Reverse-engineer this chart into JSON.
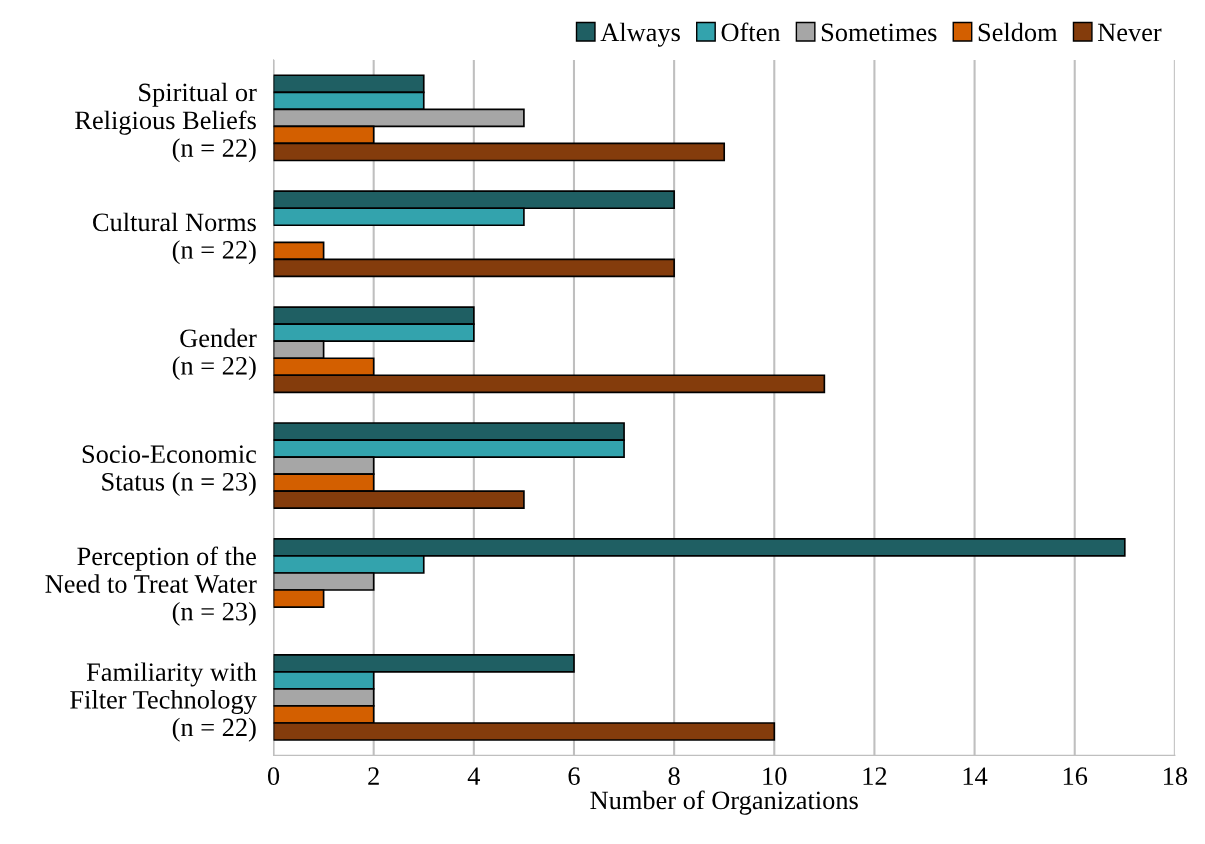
{
  "chart_data": {
    "type": "bar",
    "orientation": "horizontal",
    "xlabel": "Number of Organizations",
    "categories": [
      "Spiritual or\nReligious Beliefs\n(n = 22)",
      "Cultural Norms\n(n = 22)",
      "Gender\n(n = 22)",
      "Socio-Economic\nStatus (n = 23)",
      "Perception of the\nNeed to Treat Water\n(n = 23)",
      "Familiarity with\nFilter Technology\n(n = 22)"
    ],
    "series": [
      {
        "name": "Always",
        "color": "#1f5f63",
        "values": [
          3,
          8,
          4,
          7,
          17,
          6
        ]
      },
      {
        "name": "Often",
        "color": "#33a3ad",
        "values": [
          3,
          5,
          4,
          7,
          3,
          2
        ]
      },
      {
        "name": "Sometimes",
        "color": "#a6a6a6",
        "values": [
          5,
          null,
          1,
          2,
          2,
          2
        ]
      },
      {
        "name": "Seldom",
        "color": "#d35f00",
        "values": [
          2,
          1,
          2,
          2,
          1,
          2
        ]
      },
      {
        "name": "Never",
        "color": "#843c0c",
        "values": [
          9,
          8,
          11,
          5,
          null,
          10
        ]
      }
    ],
    "xlim": [
      0,
      18
    ],
    "xticks": [
      0,
      2,
      4,
      6,
      8,
      10,
      12,
      14,
      16,
      18
    ],
    "grid": "x",
    "legend": "top right"
  }
}
